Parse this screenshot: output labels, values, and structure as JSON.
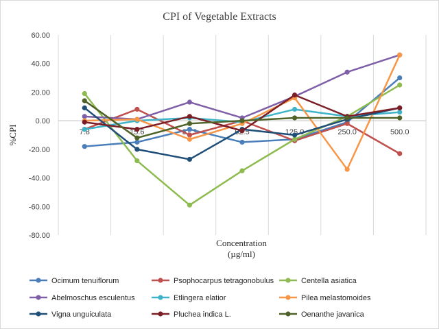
{
  "chart_data": {
    "type": "line",
    "title": "CPI of Vegetable Extracts",
    "xlabel": "Concentration",
    "xlabel_unit": "(µg/ml)",
    "ylabel": "%CPI",
    "categories": [
      "7.8",
      "15.6",
      "31.3",
      "62.5",
      "125.0",
      "250.0",
      "500.0"
    ],
    "ylim": [
      -80,
      60
    ],
    "ytick_step": 20,
    "ytick_labels": [
      "60.00",
      "40.00",
      "20.00",
      "0.00",
      "-20.00",
      "-40.00",
      "-60.00",
      "-80.00"
    ],
    "grid": "vertical",
    "legend_position": "bottom",
    "series": [
      {
        "name": "Ocimum tenuiflorum",
        "color": "#4a7ebb",
        "values": [
          -18,
          -15,
          -6,
          -15,
          -13,
          -1,
          30
        ]
      },
      {
        "name": "Psophocarpus tetragonobulus",
        "color": "#c0504d",
        "values": [
          -6,
          8,
          -10,
          0,
          -14,
          -2,
          -23
        ]
      },
      {
        "name": "Centella asiatica",
        "color": "#8dbb4f",
        "values": [
          19,
          -28,
          -59,
          -35,
          -13,
          3,
          25
        ]
      },
      {
        "name": "Abelmoschus esculentus",
        "color": "#7f5fa8",
        "values": [
          3,
          1,
          13,
          2,
          17,
          34,
          46
        ]
      },
      {
        "name": "Etlingera elatior",
        "color": "#3fb4c8",
        "values": [
          -6,
          0,
          2,
          -1,
          8,
          3,
          6
        ]
      },
      {
        "name": "Pilea melastomoides",
        "color": "#f79646",
        "values": [
          0,
          1,
          -13,
          -2,
          16,
          -34,
          46
        ]
      },
      {
        "name": "Vigna unguiculata",
        "color": "#1f4e79",
        "values": [
          9,
          -20,
          -27,
          -6,
          -10,
          1,
          9
        ]
      },
      {
        "name": "Pluchea indica L.",
        "color": "#7b1e26",
        "values": [
          -1,
          -6,
          3,
          -7,
          18,
          3,
          9
        ]
      },
      {
        "name": "Oenanthe javanica",
        "color": "#4f6228",
        "values": [
          14,
          -12,
          -2,
          0,
          2,
          2,
          2
        ]
      }
    ]
  }
}
